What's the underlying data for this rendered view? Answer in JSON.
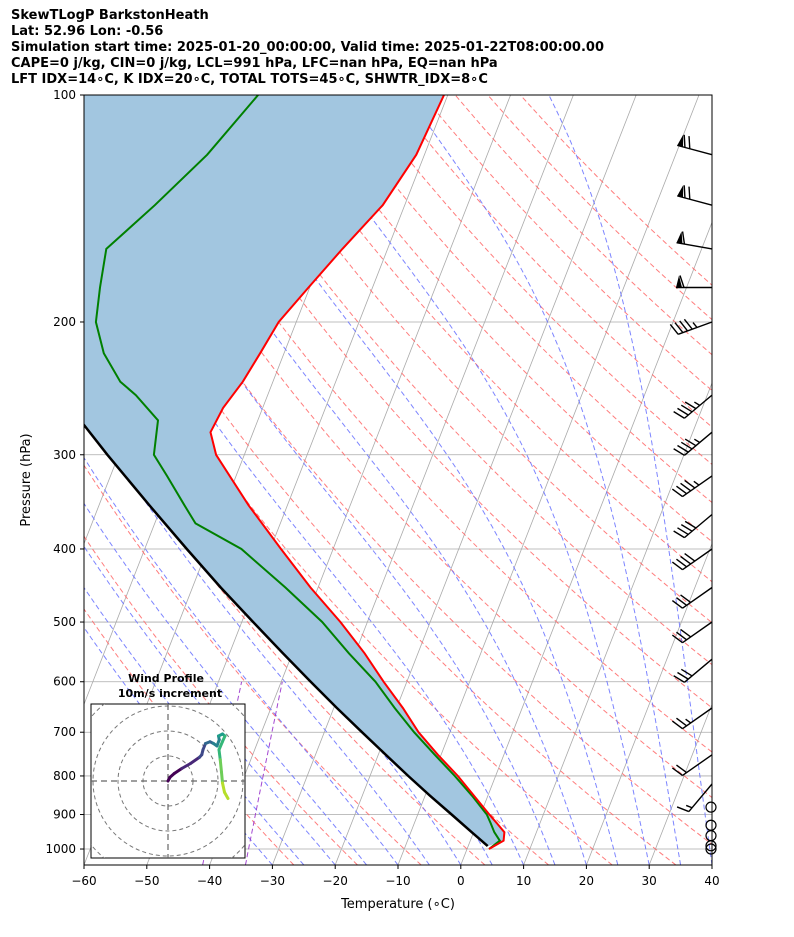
{
  "header": {
    "line1": "SkewTLogP BarkstonHeath",
    "line2": "Lat: 52.96   Lon: -0.56",
    "line3": "Simulation start time: 2025-01-20_00:00:00, Valid time: 2025-01-22T08:00:00.00",
    "line4": "CAPE=0 j/kg, CIN=0 j/kg, LCL=991 hPa, LFC=nan hPa, EQ=nan hPa",
    "line5": "LFT IDX=14∘C, K IDX=20∘C, TOTAL TOTS=45∘C, SHWTR_IDX=8∘C"
  },
  "chart_data": {
    "type": "line",
    "subtype": "skew-T log-P diagram",
    "xlabel": "Temperature (∘C)",
    "ylabel": "Pressure (hPa)",
    "xlim": [
      -60,
      40
    ],
    "ylim": [
      1050,
      100
    ],
    "y_scale": "log",
    "x_ticks": [
      -60,
      -50,
      -40,
      -30,
      -20,
      -10,
      0,
      10,
      20,
      30,
      40
    ],
    "x_tick_labels": [
      "−60",
      "−50",
      "−40",
      "−30",
      "−20",
      "−10",
      "0",
      "10",
      "20",
      "30",
      "40"
    ],
    "y_ticks": [
      1000,
      900,
      800,
      700,
      600,
      500,
      400,
      300,
      200,
      100
    ],
    "grid": true,
    "colors": {
      "temperature": "#ff0000",
      "dewpoint": "#008000",
      "parcel": "#000000",
      "cape_shade": "#a2c6e0",
      "dry_adiabat": "#ff6666",
      "moist_adiabat": "#6670ff",
      "mixing_ratio": "#9933cc",
      "isotherm": "#aaaaaa"
    },
    "series": [
      {
        "role": "temperature",
        "pressure": [
          1000,
          975,
          950,
          925,
          900,
          850,
          800,
          750,
          700,
          650,
          600,
          550,
          500,
          450,
          400,
          350,
          300,
          280,
          260,
          240,
          220,
          200,
          180,
          160,
          140,
          120,
          100
        ],
        "values": [
          3.5,
          5.3,
          4.9,
          3.2,
          1.4,
          -2.2,
          -6.0,
          -10.5,
          -15.0,
          -19.0,
          -23.7,
          -28.5,
          -34.3,
          -41.2,
          -48.3,
          -56.2,
          -64.5,
          -66.8,
          -66.3,
          -64.8,
          -63.8,
          -62.8,
          -60.2,
          -57.2,
          -53.5,
          -51.3,
          -50.6
        ]
      },
      {
        "role": "dewpoint",
        "pressure": [
          1000,
          975,
          950,
          925,
          900,
          850,
          800,
          750,
          700,
          650,
          600,
          550,
          500,
          450,
          400,
          370,
          350,
          320,
          300,
          270,
          250,
          240,
          220,
          200,
          180,
          160,
          140,
          120,
          100
        ],
        "values": [
          3.5,
          4.7,
          3.3,
          2.2,
          1.0,
          -2.5,
          -6.5,
          -11.0,
          -15.7,
          -20.3,
          -25.0,
          -31.0,
          -37.2,
          -45.2,
          -54.6,
          -63.5,
          -66.4,
          -71.0,
          -74.4,
          -75.9,
          -81.0,
          -84.3,
          -88.7,
          -91.9,
          -93.4,
          -94.8,
          -89.8,
          -84.6,
          -80.2
        ]
      },
      {
        "role": "parcel",
        "pressure": [
          991,
          950,
          900,
          850,
          800,
          750,
          700,
          650,
          600,
          550,
          500,
          450,
          400,
          350,
          300,
          250,
          200,
          150,
          100
        ],
        "values": [
          3.1,
          -0.3,
          -4.6,
          -9.2,
          -13.9,
          -18.8,
          -24.0,
          -29.5,
          -35.3,
          -41.5,
          -48.2,
          -55.5,
          -63.3,
          -72.0,
          -81.8,
          -93.0,
          -106.2,
          -122.3,
          -144.0
        ]
      }
    ],
    "annotations": {
      "cape_cin_shading": "between temperature and parcel profiles (blue)"
    },
    "wind_barbs": [
      {
        "p": 120,
        "speed_kt": 70,
        "dir_deg": 285
      },
      {
        "p": 140,
        "speed_kt": 70,
        "dir_deg": 285
      },
      {
        "p": 160,
        "speed_kt": 60,
        "dir_deg": 280
      },
      {
        "p": 180,
        "speed_kt": 60,
        "dir_deg": 270
      },
      {
        "p": 200,
        "speed_kt": 45,
        "dir_deg": 250
      },
      {
        "p": 250,
        "speed_kt": 45,
        "dir_deg": 230
      },
      {
        "p": 280,
        "speed_kt": 45,
        "dir_deg": 230
      },
      {
        "p": 320,
        "speed_kt": 45,
        "dir_deg": 235
      },
      {
        "p": 360,
        "speed_kt": 40,
        "dir_deg": 230
      },
      {
        "p": 400,
        "speed_kt": 40,
        "dir_deg": 235
      },
      {
        "p": 450,
        "speed_kt": 30,
        "dir_deg": 235
      },
      {
        "p": 500,
        "speed_kt": 30,
        "dir_deg": 235
      },
      {
        "p": 560,
        "speed_kt": 30,
        "dir_deg": 230
      },
      {
        "p": 650,
        "speed_kt": 25,
        "dir_deg": 235
      },
      {
        "p": 750,
        "speed_kt": 20,
        "dir_deg": 235
      },
      {
        "p": 820,
        "speed_kt": 15,
        "dir_deg": 220
      },
      {
        "p": 880,
        "speed_kt": 0,
        "dir_deg": 0
      },
      {
        "p": 930,
        "speed_kt": 0,
        "dir_deg": 0
      },
      {
        "p": 960,
        "speed_kt": 0,
        "dir_deg": 0
      },
      {
        "p": 990,
        "speed_kt": 0,
        "dir_deg": 0
      },
      {
        "p": 1000,
        "speed_kt": 0,
        "dir_deg": 0
      }
    ],
    "hodograph": {
      "title_line1": "Wind Profile",
      "title_line2": "10m/s increment",
      "ring_increment_ms": 10,
      "u": [
        0.0,
        0.8,
        2.5,
        5.5,
        9.0,
        12.6,
        13.5,
        14.0,
        15.0,
        16.8,
        18.2,
        19.6,
        20.5,
        20.2,
        21.8,
        22.8,
        21.8,
        20.4,
        20.9,
        21.4,
        21.8,
        22.6,
        24.0
      ],
      "v": [
        0.0,
        1.5,
        3.0,
        5.0,
        7.0,
        9.5,
        10.5,
        12.5,
        15.0,
        15.7,
        15.0,
        14.0,
        16.5,
        18.0,
        18.8,
        18.0,
        15.8,
        12.5,
        8.5,
        3.5,
        -0.8,
        -4.5,
        -7.0
      ]
    }
  }
}
